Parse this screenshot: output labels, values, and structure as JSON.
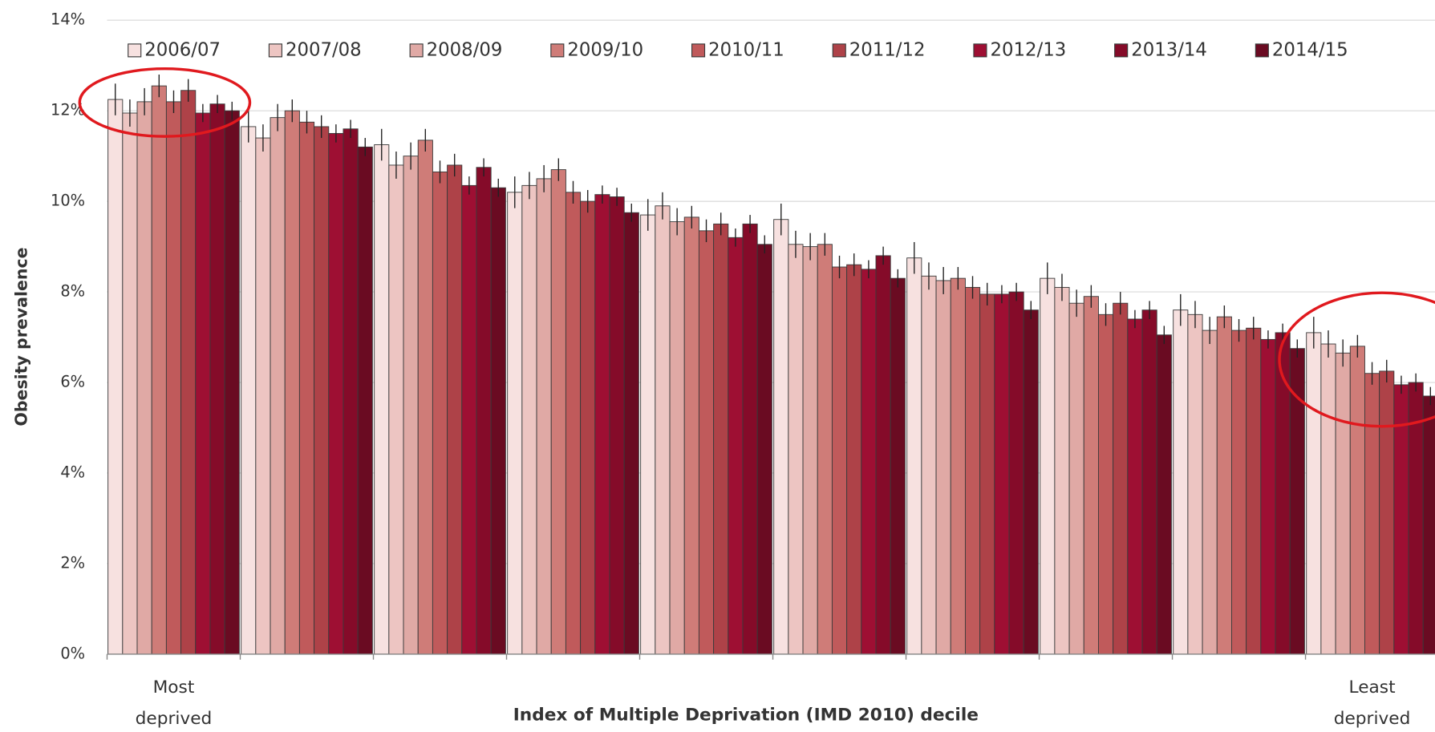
{
  "chart_data": {
    "type": "bar",
    "y_label": "Obesity prevalence",
    "x_label": "Index of Multiple Deprivation (IMD 2010)  decile",
    "categories": [
      "Most deprived",
      null,
      null,
      null,
      null,
      null,
      null,
      null,
      null,
      "Least deprived"
    ],
    "ylim": [
      0,
      14
    ],
    "yticks": [
      {
        "value": 0,
        "label": "0%"
      },
      {
        "value": 2,
        "label": "2%"
      },
      {
        "value": 4,
        "label": "4%"
      },
      {
        "value": 6,
        "label": "6%"
      },
      {
        "value": 8,
        "label": "8%"
      },
      {
        "value": 10,
        "label": "10%"
      },
      {
        "value": 12,
        "label": "12%"
      },
      {
        "value": 14,
        "label": "14%"
      }
    ],
    "grid": true,
    "legend": "top",
    "series": [
      {
        "name": "2006/07",
        "color": "#f7e1e0",
        "values": [
          12.25,
          11.65,
          11.25,
          10.2,
          9.7,
          9.6,
          8.75,
          8.3,
          7.6,
          7.1
        ],
        "errors": [
          0.35,
          0.35,
          0.35,
          0.35,
          0.35,
          0.35,
          0.35,
          0.35,
          0.35,
          0.35
        ]
      },
      {
        "name": "2007/08",
        "color": "#edc5c2",
        "values": [
          11.95,
          11.4,
          10.8,
          10.35,
          9.9,
          9.05,
          8.35,
          8.1,
          7.5,
          6.85
        ],
        "errors": [
          0.3,
          0.3,
          0.3,
          0.3,
          0.3,
          0.3,
          0.3,
          0.3,
          0.3,
          0.3
        ]
      },
      {
        "name": "2008/09",
        "color": "#e0a9a5",
        "values": [
          12.2,
          11.85,
          11.0,
          10.5,
          9.55,
          9.0,
          8.25,
          7.75,
          7.15,
          6.65
        ],
        "errors": [
          0.3,
          0.3,
          0.3,
          0.3,
          0.3,
          0.3,
          0.3,
          0.3,
          0.3,
          0.3
        ]
      },
      {
        "name": "2009/10",
        "color": "#cf7c78",
        "values": [
          12.55,
          12.0,
          11.35,
          10.7,
          9.65,
          9.05,
          8.3,
          7.9,
          7.45,
          6.8
        ],
        "errors": [
          0.25,
          0.25,
          0.25,
          0.25,
          0.25,
          0.25,
          0.25,
          0.25,
          0.25,
          0.25
        ]
      },
      {
        "name": "2010/11",
        "color": "#c05a5b",
        "values": [
          12.2,
          11.75,
          10.65,
          10.2,
          9.35,
          8.55,
          8.1,
          7.5,
          7.15,
          6.2
        ],
        "errors": [
          0.25,
          0.25,
          0.25,
          0.25,
          0.25,
          0.25,
          0.25,
          0.25,
          0.25,
          0.25
        ]
      },
      {
        "name": "2011/12",
        "color": "#ae4248",
        "values": [
          12.45,
          11.65,
          10.8,
          10.0,
          9.5,
          8.6,
          7.95,
          7.75,
          7.2,
          6.25
        ],
        "errors": [
          0.25,
          0.25,
          0.25,
          0.25,
          0.25,
          0.25,
          0.25,
          0.25,
          0.25,
          0.25
        ]
      },
      {
        "name": "2012/13",
        "color": "#9e0f33",
        "values": [
          11.95,
          11.5,
          10.35,
          10.15,
          9.2,
          8.5,
          7.95,
          7.4,
          6.95,
          5.95
        ],
        "errors": [
          0.2,
          0.2,
          0.2,
          0.2,
          0.2,
          0.2,
          0.2,
          0.2,
          0.2,
          0.2
        ]
      },
      {
        "name": "2013/14",
        "color": "#850b29",
        "values": [
          12.15,
          11.6,
          10.75,
          10.1,
          9.5,
          8.8,
          8.0,
          7.6,
          7.1,
          6.0
        ],
        "errors": [
          0.2,
          0.2,
          0.2,
          0.2,
          0.2,
          0.2,
          0.2,
          0.2,
          0.2,
          0.2
        ]
      },
      {
        "name": "2014/15",
        "color": "#6a0b22",
        "values": [
          12.0,
          11.2,
          10.3,
          9.75,
          9.05,
          8.3,
          7.6,
          7.05,
          6.75,
          5.7
        ],
        "errors": [
          0.2,
          0.2,
          0.2,
          0.2,
          0.2,
          0.2,
          0.2,
          0.2,
          0.2,
          0.2
        ]
      }
    ]
  }
}
